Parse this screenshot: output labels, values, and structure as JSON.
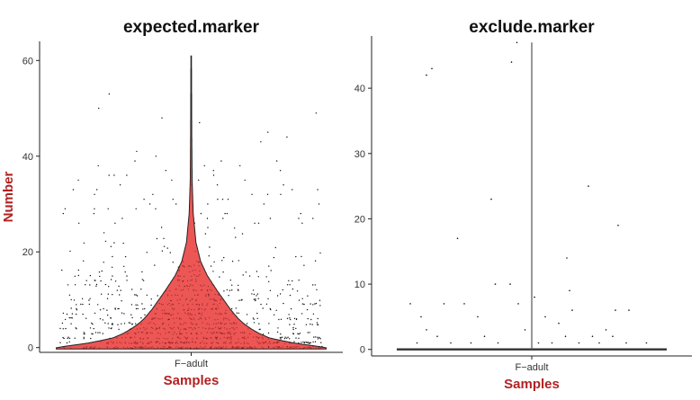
{
  "chart_data": [
    {
      "type": "violin",
      "title": "expected.marker",
      "xlabel": "Samples",
      "ylabel": "Number",
      "categories": [
        "F−adult"
      ],
      "yticks": [
        0,
        20,
        40,
        60
      ],
      "ylim": [
        -1,
        64
      ],
      "violin_color": "#e8312f",
      "series": [
        {
          "category": "F−adult",
          "max": 61,
          "density_profile": [
            [
              0,
              1.0
            ],
            [
              1,
              0.75
            ],
            [
              2,
              0.58
            ],
            [
              3,
              0.5
            ],
            [
              4,
              0.44
            ],
            [
              5,
              0.39
            ],
            [
              6,
              0.35
            ],
            [
              8,
              0.29
            ],
            [
              10,
              0.24
            ],
            [
              12,
              0.19
            ],
            [
              15,
              0.12
            ],
            [
              18,
              0.07
            ],
            [
              22,
              0.035
            ],
            [
              28,
              0.015
            ],
            [
              35,
              0.007
            ],
            [
              45,
              0.004
            ],
            [
              61,
              0.002
            ]
          ],
          "points_description": "dense jittered points from 0 to ~25, sparse up to 61"
        }
      ]
    },
    {
      "type": "violin",
      "title": "exclude.marker",
      "xlabel": "Samples",
      "ylabel": "Number",
      "categories": [
        "F−adult"
      ],
      "yticks": [
        0,
        10,
        20,
        30,
        40
      ],
      "ylim": [
        -1,
        48
      ],
      "violin_color": "#e8312f",
      "series": [
        {
          "category": "F−adult",
          "max": 47,
          "outliers": [
            [
              -0.78,
              42
            ],
            [
              -0.74,
              43
            ],
            [
              0.42,
              25
            ],
            [
              0.64,
              19
            ],
            [
              0.26,
              14
            ],
            [
              0.28,
              9
            ],
            [
              -0.55,
              17
            ],
            [
              -0.3,
              23
            ],
            [
              -0.15,
              44
            ],
            [
              -0.11,
              47
            ],
            [
              -0.16,
              10
            ],
            [
              -0.5,
              7
            ],
            [
              -0.1,
              7
            ],
            [
              0.02,
              8
            ],
            [
              0.3,
              6
            ],
            [
              0.62,
              6
            ],
            [
              -0.65,
              7
            ],
            [
              -0.27,
              10
            ],
            [
              0.72,
              6
            ],
            [
              0.55,
              3
            ],
            [
              -0.82,
              5
            ],
            [
              -0.4,
              5
            ],
            [
              0.1,
              5
            ],
            [
              0.2,
              4
            ],
            [
              -0.9,
              7
            ],
            [
              -0.05,
              3
            ],
            [
              0.45,
              2
            ],
            [
              -0.7,
              2
            ],
            [
              0.85,
              1
            ],
            [
              -0.6,
              1
            ],
            [
              0.35,
              1
            ],
            [
              -0.25,
              1
            ],
            [
              0.15,
              1
            ],
            [
              -0.45,
              1
            ],
            [
              0.05,
              1
            ],
            [
              0.7,
              1
            ],
            [
              -0.85,
              1
            ],
            [
              0.5,
              1
            ],
            [
              -0.35,
              2
            ],
            [
              0.25,
              2
            ],
            [
              -0.78,
              3
            ],
            [
              0.6,
              2
            ]
          ]
        }
      ]
    }
  ]
}
